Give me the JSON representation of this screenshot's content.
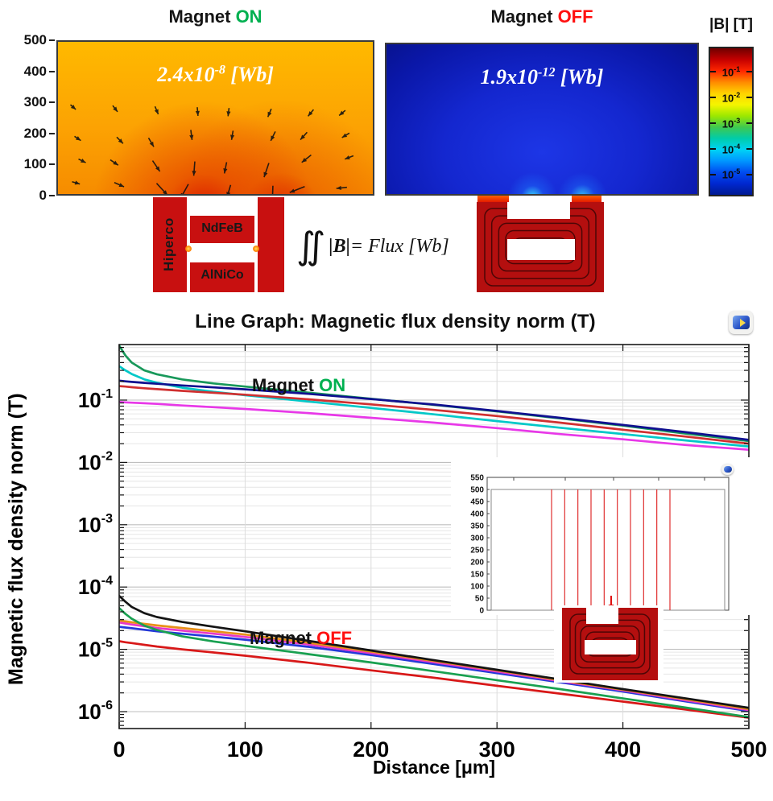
{
  "top": {
    "panel_on": {
      "title_prefix": "Magnet ",
      "title_state": "ON",
      "state_color": "#00b050",
      "flux_base": "2.4x10",
      "flux_exp": "-8",
      "flux_unit": " [Wb]",
      "yticks": [
        "500",
        "400",
        "300",
        "200",
        "100",
        "0"
      ]
    },
    "panel_off": {
      "title_prefix": "Magnet ",
      "title_state": "OFF",
      "state_color": "#ff1010",
      "flux_base": "1.9x10",
      "flux_exp": "-12",
      "flux_unit": " [Wb]"
    },
    "colorbar": {
      "title": "|B| [T]",
      "tick_base": "10",
      "tick_exps": [
        "-1",
        "-2",
        "-3",
        "-4",
        "-5"
      ],
      "gradient": [
        "#700000",
        "#c40000",
        "#ff2600",
        "#ff8a00",
        "#ffd300",
        "#f5f500",
        "#9ce800",
        "#3fc850",
        "#00ccaa",
        "#00d2f5",
        "#0096ff",
        "#004cf0",
        "#0028d0",
        "#001a92"
      ]
    },
    "magnet_labels": {
      "left": "Hiperco",
      "mid_top": "NdFeB",
      "mid_bottom": "AlNiCo"
    },
    "formula": {
      "integral": "∬",
      "b": "|B|",
      "rest": " = Flux [Wb]"
    }
  },
  "graph": {
    "title": "Line Graph: Magnetic flux density norm (T)",
    "xlabel": "Distance [μm]",
    "ylabel": "Magnetic flux density norm (T)",
    "xticks": [
      "0",
      "100",
      "200",
      "300",
      "400",
      "500"
    ],
    "ytick_base": "10",
    "ytick_exps": [
      "-1",
      "-2",
      "-3",
      "-4",
      "-5",
      "-6"
    ],
    "label_on": {
      "prefix": "Magnet ",
      "state": "ON",
      "color": "#00b050"
    },
    "label_off": {
      "prefix": "Magnet ",
      "state": "OFF",
      "color": "#ff1010"
    }
  },
  "inset": {
    "yticks": [
      "550",
      "500",
      "450",
      "400",
      "350",
      "300",
      "250",
      "200",
      "150",
      "100",
      "50",
      "0"
    ],
    "cut_line_count": 10
  },
  "chart_data": {
    "type": "line",
    "title": "Line Graph: Magnetic flux density norm (T)",
    "xlabel": "Distance [μm]",
    "ylabel": "Magnetic flux density norm (T)",
    "x_range": [
      0,
      500
    ],
    "y_scale": "log",
    "y_range": [
      1e-06,
      0.8
    ],
    "grid": true,
    "annotations": [
      "Magnet ON",
      "Magnet OFF"
    ],
    "x": [
      0,
      5,
      10,
      20,
      30,
      50,
      75,
      100,
      150,
      200,
      250,
      300,
      350,
      400,
      450,
      500
    ],
    "series": [
      {
        "group": "Magnet ON",
        "color": "#e838e8",
        "values": [
          0.093,
          0.092,
          0.091,
          0.089,
          0.087,
          0.082,
          0.077,
          0.072,
          0.062,
          0.052,
          0.0435,
          0.0355,
          0.0285,
          0.0235,
          0.019,
          0.016
        ]
      },
      {
        "group": "Magnet ON",
        "color": "#00c8c8",
        "values": [
          0.35,
          0.3,
          0.262,
          0.215,
          0.19,
          0.158,
          0.136,
          0.12,
          0.095,
          0.075,
          0.059,
          0.046,
          0.036,
          0.0285,
          0.0225,
          0.018
        ]
      },
      {
        "group": "Magnet ON",
        "color": "#d03030",
        "values": [
          0.168,
          0.165,
          0.161,
          0.155,
          0.15,
          0.141,
          0.131,
          0.122,
          0.103,
          0.0855,
          0.0695,
          0.0555,
          0.0435,
          0.0335,
          0.026,
          0.02
        ]
      },
      {
        "group": "Magnet ON",
        "color": "#18985a",
        "values": [
          0.75,
          0.52,
          0.4,
          0.3,
          0.26,
          0.215,
          0.185,
          0.165,
          0.132,
          0.105,
          0.084,
          0.066,
          0.051,
          0.039,
          0.029,
          0.022
        ]
      },
      {
        "group": "Magnet ON",
        "color": "#101090",
        "values": [
          0.205,
          0.2,
          0.196,
          0.189,
          0.183,
          0.172,
          0.16,
          0.149,
          0.126,
          0.104,
          0.085,
          0.067,
          0.052,
          0.04,
          0.0305,
          0.023
        ]
      },
      {
        "group": "Magnet OFF",
        "color": "#d81818",
        "values": [
          1.35e-05,
          1.3e-05,
          1.26e-05,
          1.18e-05,
          1.11e-05,
          1e-05,
          8.9e-06,
          7.9e-06,
          6.1e-06,
          4.6e-06,
          3.5e-06,
          2.6e-06,
          1.95e-06,
          1.45e-06,
          1.08e-06,
          8e-07
        ]
      },
      {
        "group": "Magnet OFF",
        "color": "#2438d8",
        "values": [
          2.3e-05,
          2.24e-05,
          2.18e-05,
          2.06e-05,
          1.95e-05,
          1.78e-05,
          1.6e-05,
          1.43e-05,
          1.1e-05,
          8.1e-06,
          5.8e-06,
          4.15e-06,
          2.95e-06,
          2.1e-06,
          1.46e-06,
          1.02e-06
        ]
      },
      {
        "group": "Magnet OFF",
        "color": "#e838c8",
        "values": [
          2.7e-05,
          2.6e-05,
          2.5e-05,
          2.35e-05,
          2.2e-05,
          2e-05,
          1.78e-05,
          1.58e-05,
          1.2e-05,
          8.7e-06,
          6.2e-06,
          4.4e-06,
          3.1e-06,
          2.2e-06,
          1.52e-06,
          1.06e-06
        ]
      },
      {
        "group": "Magnet OFF",
        "color": "#e89018",
        "values": [
          2.9e-05,
          2.82e-05,
          2.72e-05,
          2.56e-05,
          2.42e-05,
          2.2e-05,
          1.95e-05,
          1.73e-05,
          1.28e-05,
          9.2e-06,
          6.5e-06,
          4.6e-06,
          3.2e-06,
          2.25e-06,
          1.58e-06,
          1.1e-06
        ]
      },
      {
        "group": "Magnet OFF",
        "color": "#18a050",
        "values": [
          4.6e-05,
          3.7e-05,
          3.1e-05,
          2.4e-05,
          2.05e-05,
          1.62e-05,
          1.34e-05,
          1.14e-05,
          8.4e-06,
          6.15e-06,
          4.45e-06,
          3.2e-06,
          2.3e-06,
          1.63e-06,
          1.16e-06,
          8.2e-07
        ]
      },
      {
        "group": "Magnet OFF",
        "color": "#141414",
        "values": [
          7.2e-05,
          5.8e-05,
          4.8e-05,
          3.8e-05,
          3.3e-05,
          2.75e-05,
          2.3e-05,
          1.95e-05,
          1.37e-05,
          9.6e-06,
          6.7e-06,
          4.7e-06,
          3.3e-06,
          2.3e-06,
          1.63e-06,
          1.15e-06
        ]
      }
    ]
  }
}
